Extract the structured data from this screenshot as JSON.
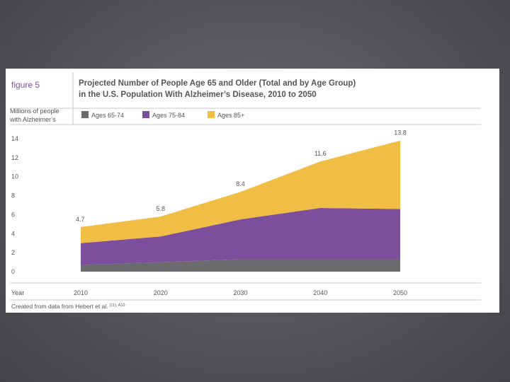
{
  "figure": {
    "label": "figure  5",
    "title_line1": "Projected Number of People Age 65 and Older (Total and by Age Group)",
    "title_line2": "in the U.S. Population With Alzheimer’s Disease, 2010 to 2050"
  },
  "colors": {
    "ages_65_74": "#6b6b6e",
    "ages_75_84": "#7b4f9c",
    "ages_85_plus": "#f1be45",
    "title_text": "#555555",
    "label_purple": "#7b4f9c",
    "rule": "#c9c9c9"
  },
  "source": {
    "text": "Created from data from Hebert et al.",
    "superscript": "(11), A10"
  },
  "chart_data": {
    "type": "area",
    "stacked": true,
    "title": "Projected Number of People Age 65 and Older (Total and by Age Group) in the U.S. Population With Alzheimer’s Disease, 2010 to 2050",
    "ylabel": "Millions of people with Alzheimer’s",
    "xlabel": "Year",
    "ylim": [
      0,
      14
    ],
    "yticks": [
      0,
      2,
      4,
      6,
      8,
      10,
      12,
      14
    ],
    "xticks": [
      2010,
      2020,
      2030,
      2040,
      2050
    ],
    "x": [
      2010,
      2020,
      2030,
      2040,
      2050
    ],
    "series": [
      {
        "name": "Ages 65-74",
        "values": [
          0.7,
          1.0,
          1.3,
          1.3,
          1.3
        ]
      },
      {
        "name": "Ages 75-84",
        "values": [
          2.3,
          2.7,
          4.2,
          5.4,
          5.3
        ]
      },
      {
        "name": "Ages 85+",
        "values": [
          1.7,
          2.1,
          2.9,
          4.9,
          7.2
        ]
      }
    ],
    "totals": [
      4.7,
      5.8,
      8.4,
      11.6,
      13.8
    ],
    "total_labels": [
      "4.7",
      "5.8",
      "8.4",
      "11.6",
      "13.8"
    ],
    "legend_position": "top"
  }
}
